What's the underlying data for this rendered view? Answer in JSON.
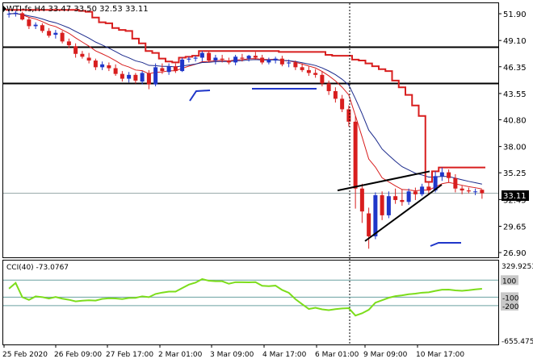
{
  "symbol_info": "WTI-fs,H4  33.47 33.50 32.53 33.11",
  "price_axis_labels": [
    "51.90",
    "49.10",
    "46.35",
    "43.55",
    "40.80",
    "38.00",
    "35.25",
    "32.45",
    "29.65",
    "26.90"
  ],
  "current_price_label": "33.11",
  "cci": {
    "title": "CCI(40) -73.0767",
    "top_label": "329.9253",
    "levels": [
      "100",
      "-100",
      "-200"
    ],
    "bottom_label": "-655.475"
  },
  "time_axis_labels": [
    "25 Feb 2020",
    "26 Feb 09:00",
    "27 Feb 17:00",
    "2 Mar 01:00",
    "3 Mar 09:00",
    "4 Mar 17:00",
    "6 Mar 01:00",
    "9 Mar 09:00",
    "10 Mar 17:00"
  ],
  "colors": {
    "bull_body": "#1f36c9",
    "bear_body": "#d81e1e",
    "ma_fast": "#d81e1e",
    "ma_slow": "#1b2a8c",
    "level_line": "#000000",
    "trend_line": "#000000",
    "cci_line": "#7cdd1b",
    "cci_level": "#6aa0a0"
  },
  "chart_data": {
    "type": "candlestick",
    "y_range": [
      26.4,
      53.0
    ],
    "horizontal_levels": [
      48.4,
      44.6
    ],
    "candles": [
      [
        51.9,
        52.3,
        51.5,
        51.9
      ],
      [
        51.9,
        52.2,
        51.6,
        52.0
      ],
      [
        51.95,
        52.1,
        51.2,
        51.3
      ],
      [
        51.3,
        51.5,
        50.3,
        50.6
      ],
      [
        50.6,
        51.0,
        50.3,
        50.75
      ],
      [
        50.7,
        50.9,
        49.9,
        50.1
      ],
      [
        50.1,
        50.4,
        49.4,
        49.6
      ],
      [
        49.7,
        50.2,
        49.3,
        49.9
      ],
      [
        49.9,
        50.1,
        48.8,
        49.0
      ],
      [
        49.0,
        49.3,
        48.3,
        48.6
      ],
      [
        48.5,
        48.8,
        47.3,
        47.7
      ],
      [
        47.7,
        48.0,
        47.2,
        47.4
      ],
      [
        47.3,
        47.8,
        46.7,
        47.0
      ],
      [
        47.0,
        47.2,
        46.0,
        46.3
      ],
      [
        46.3,
        46.9,
        46.0,
        46.6
      ],
      [
        46.5,
        46.8,
        45.9,
        46.2
      ],
      [
        46.2,
        46.6,
        45.4,
        45.6
      ],
      [
        45.6,
        45.9,
        44.8,
        45.1
      ],
      [
        45.1,
        45.8,
        44.7,
        45.5
      ],
      [
        45.5,
        45.7,
        44.6,
        44.9
      ],
      [
        44.8,
        45.9,
        44.5,
        45.7
      ],
      [
        45.7,
        46.0,
        44.0,
        44.5
      ],
      [
        44.5,
        46.7,
        44.3,
        46.3
      ],
      [
        46.2,
        46.7,
        45.6,
        45.9
      ],
      [
        45.8,
        46.7,
        45.5,
        46.4
      ],
      [
        46.4,
        46.7,
        45.7,
        45.9
      ],
      [
        45.9,
        47.3,
        45.8,
        47.1
      ],
      [
        47.1,
        47.4,
        46.8,
        47.2
      ],
      [
        47.2,
        47.5,
        46.9,
        47.3
      ],
      [
        47.3,
        48.0,
        46.9,
        47.8
      ],
      [
        47.8,
        48.0,
        46.8,
        47.0
      ],
      [
        47.0,
        47.6,
        46.6,
        47.3
      ],
      [
        47.2,
        47.6,
        46.8,
        47.1
      ],
      [
        47.0,
        47.3,
        46.6,
        46.8
      ],
      [
        46.8,
        47.6,
        46.5,
        47.4
      ],
      [
        47.3,
        47.7,
        46.9,
        47.2
      ],
      [
        47.2,
        47.6,
        46.9,
        47.5
      ],
      [
        47.5,
        47.9,
        47.1,
        47.3
      ],
      [
        47.3,
        47.6,
        46.6,
        46.8
      ],
      [
        46.8,
        47.3,
        46.6,
        47.1
      ],
      [
        47.0,
        47.4,
        46.7,
        47.2
      ],
      [
        47.2,
        47.5,
        46.4,
        46.6
      ],
      [
        46.7,
        47.1,
        46.3,
        46.8
      ],
      [
        46.8,
        47.0,
        46.0,
        46.3
      ],
      [
        46.3,
        46.7,
        45.8,
        46.0
      ],
      [
        46.0,
        46.4,
        45.4,
        45.7
      ],
      [
        45.7,
        46.1,
        45.2,
        45.5
      ],
      [
        45.5,
        45.9,
        44.3,
        44.6
      ],
      [
        44.6,
        44.9,
        43.4,
        43.8
      ],
      [
        43.8,
        44.2,
        42.6,
        43.0
      ],
      [
        43.0,
        43.4,
        41.6,
        41.9
      ],
      [
        41.9,
        42.3,
        40.1,
        40.6
      ],
      [
        40.6,
        41.2,
        31.5,
        33.6
      ],
      [
        33.6,
        34.1,
        30.0,
        31.2
      ],
      [
        31.0,
        31.6,
        27.3,
        28.6
      ],
      [
        28.6,
        33.2,
        28.3,
        32.9
      ],
      [
        32.9,
        33.3,
        30.3,
        30.8
      ],
      [
        30.8,
        33.3,
        30.5,
        32.8
      ],
      [
        32.8,
        33.6,
        32.0,
        32.4
      ],
      [
        32.4,
        33.5,
        31.8,
        32.2
      ],
      [
        32.2,
        33.6,
        31.9,
        33.3
      ],
      [
        33.3,
        33.7,
        32.4,
        33.0
      ],
      [
        33.0,
        34.1,
        32.8,
        33.8
      ],
      [
        33.8,
        34.3,
        33.0,
        33.4
      ],
      [
        33.4,
        35.4,
        33.2,
        34.9
      ],
      [
        34.9,
        35.8,
        34.4,
        35.3
      ],
      [
        35.3,
        35.6,
        34.2,
        34.7
      ],
      [
        34.7,
        35.1,
        33.2,
        33.6
      ],
      [
        33.6,
        33.9,
        33.0,
        33.4
      ],
      [
        33.4,
        33.7,
        33.1,
        33.3
      ],
      [
        33.3,
        33.6,
        32.9,
        33.3
      ],
      [
        33.47,
        33.5,
        32.53,
        33.11
      ]
    ]
  }
}
